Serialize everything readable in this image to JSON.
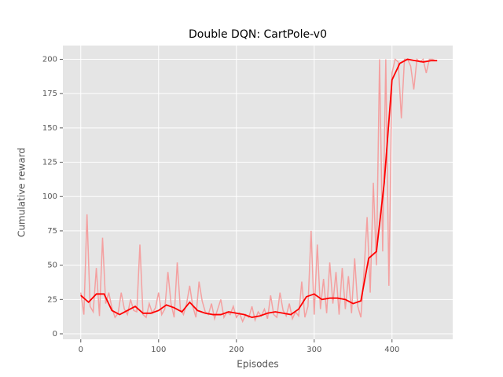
{
  "chart_data": {
    "type": "line",
    "title": "Double DQN: CartPole-v0",
    "x_label": "Episodes",
    "y_label": "Cumulative reward",
    "xlim": [
      -23,
      478
    ],
    "ylim": [
      -4,
      210
    ],
    "xticks": [
      0,
      100,
      200,
      300,
      400
    ],
    "yticks": [
      0,
      25,
      50,
      75,
      100,
      125,
      150,
      175,
      200
    ],
    "grid": true,
    "series": [
      {
        "color": "#f4a0a0",
        "x": [
          0,
          4,
          8,
          12,
          16,
          20,
          24,
          28,
          32,
          36,
          40,
          44,
          48,
          52,
          56,
          60,
          64,
          68,
          72,
          76,
          80,
          84,
          88,
          92,
          96,
          100,
          104,
          108,
          112,
          116,
          120,
          124,
          128,
          132,
          136,
          140,
          144,
          148,
          152,
          156,
          160,
          164,
          168,
          172,
          176,
          180,
          184,
          188,
          192,
          196,
          200,
          204,
          208,
          212,
          216,
          220,
          224,
          228,
          232,
          236,
          240,
          244,
          248,
          252,
          256,
          260,
          264,
          268,
          272,
          276,
          280,
          284,
          288,
          292,
          296,
          300,
          304,
          308,
          312,
          316,
          320,
          324,
          328,
          332,
          336,
          340,
          344,
          348,
          352,
          356,
          360,
          364,
          368,
          372,
          376,
          380,
          384,
          388,
          392,
          396,
          400,
          404,
          408,
          412,
          416,
          420,
          424,
          428,
          432,
          436,
          440,
          444,
          448,
          452,
          456
        ],
        "values": [
          30,
          14,
          87,
          20,
          16,
          48,
          13,
          70,
          22,
          30,
          19,
          12,
          15,
          30,
          18,
          14,
          25,
          17,
          16,
          65,
          14,
          12,
          22,
          15,
          19,
          30,
          14,
          18,
          45,
          22,
          12,
          52,
          18,
          14,
          22,
          35,
          20,
          12,
          38,
          24,
          16,
          14,
          22,
          11,
          18,
          25,
          12,
          16,
          14,
          20,
          12,
          15,
          9,
          14,
          12,
          20,
          10,
          16,
          13,
          18,
          11,
          28,
          14,
          12,
          30,
          17,
          13,
          22,
          11,
          16,
          13,
          38,
          12,
          20,
          75,
          14,
          65,
          18,
          40,
          15,
          52,
          22,
          45,
          14,
          48,
          18,
          42,
          15,
          55,
          20,
          12,
          45,
          85,
          30,
          110,
          50,
          200,
          60,
          200,
          35,
          190,
          200,
          198,
          157,
          200,
          200,
          195,
          178,
          200,
          198,
          200,
          190,
          200,
          200,
          199
        ]
      },
      {
        "color": "#ff0000",
        "x": [
          0,
          10,
          20,
          30,
          40,
          50,
          60,
          70,
          80,
          90,
          100,
          110,
          120,
          130,
          140,
          150,
          160,
          170,
          180,
          190,
          200,
          210,
          220,
          230,
          240,
          250,
          260,
          270,
          280,
          290,
          300,
          310,
          320,
          330,
          340,
          350,
          360,
          370,
          380,
          390,
          400,
          410,
          420,
          430,
          440,
          450,
          458
        ],
        "values": [
          28,
          23,
          29,
          29,
          17,
          14,
          17,
          20,
          15,
          15,
          17,
          21,
          19,
          16,
          23,
          17,
          15,
          14,
          14,
          16,
          15,
          14,
          12,
          13,
          15,
          16,
          15,
          14,
          18,
          27,
          29,
          25,
          26,
          26,
          25,
          22,
          24,
          55,
          60,
          110,
          185,
          197,
          200,
          199,
          198,
          199,
          199
        ]
      }
    ]
  }
}
